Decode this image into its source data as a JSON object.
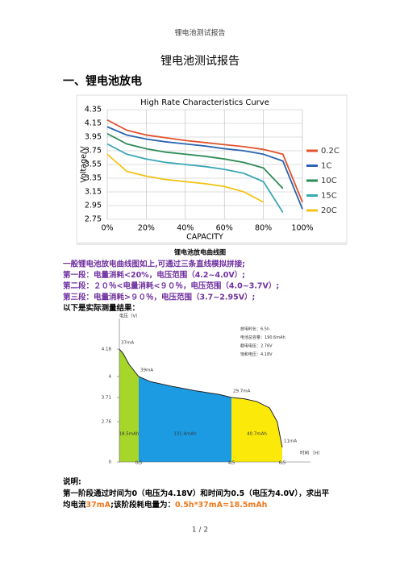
{
  "header": "锂电池测试报告",
  "title": "锂电池测试报告",
  "heading": "一、锂电池放电",
  "chart1": {
    "type": "line",
    "title": "High Rate Characteristics Curve",
    "ylabel": "Voltage/V",
    "xlabel": "CAPACITY",
    "x": [
      0,
      10,
      20,
      30,
      40,
      50,
      60,
      70,
      80,
      90,
      100
    ],
    "xlim": [
      0,
      100
    ],
    "xticks": [
      {
        "value": 0,
        "label": "0%"
      },
      {
        "value": 20,
        "label": "20%"
      },
      {
        "value": 40,
        "label": "40%"
      },
      {
        "value": 60,
        "label": "60%"
      },
      {
        "value": 80,
        "label": "80%"
      },
      {
        "value": 100,
        "label": "100%"
      }
    ],
    "ylim": [
      2.75,
      4.35
    ],
    "yticks": [
      4.35,
      4.15,
      3.95,
      3.75,
      3.55,
      3.35,
      3.15,
      2.95,
      2.75
    ],
    "grid": true,
    "series": [
      {
        "name": "0.2C",
        "color": "#e0532c",
        "values": [
          4.2,
          4.05,
          3.98,
          3.94,
          3.9,
          3.87,
          3.84,
          3.81,
          3.77,
          3.7,
          3.0
        ]
      },
      {
        "name": "1C",
        "color": "#2b64b0",
        "values": [
          4.1,
          3.98,
          3.92,
          3.88,
          3.85,
          3.82,
          3.78,
          3.75,
          3.7,
          3.6,
          2.9
        ]
      },
      {
        "name": "10C",
        "color": "#2e8b57",
        "values": [
          4.0,
          3.85,
          3.78,
          3.73,
          3.7,
          3.67,
          3.63,
          3.58,
          3.5,
          3.2,
          null
        ]
      },
      {
        "name": "15C",
        "color": "#3aa7b5",
        "values": [
          3.85,
          3.7,
          3.63,
          3.58,
          3.55,
          3.52,
          3.48,
          3.42,
          3.3,
          2.85,
          null
        ]
      },
      {
        "name": "20C",
        "color": "#f2c318",
        "values": [
          3.7,
          3.45,
          3.38,
          3.33,
          3.3,
          3.27,
          3.23,
          3.15,
          3.0,
          null,
          null
        ]
      }
    ]
  },
  "caption": "锂电池放电曲线图",
  "intro": [
    {
      "text": "一般锂电池放电曲线图如上,可通过三条直线模拟拼接;",
      "color": "#7030a0"
    },
    {
      "text": "第一段：电量消耗<20%，电压范围（4.2~4.0V）;",
      "color": "#7030a0"
    },
    {
      "text": "第二段：２０％<电量消耗<９０％，电压范围（4.0~3.7V）;",
      "color": "#7030a0"
    },
    {
      "text": "第三段：电量消耗>９０％，电压范围（3.7~2.95V）;",
      "color": "#7030a0"
    },
    {
      "text": "以下是实际测量结果：",
      "color": "#000000"
    }
  ],
  "chart2": {
    "type": "area",
    "ylabel": "电压（V）",
    "xlabel": "时间 （H）",
    "x": [
      0,
      0.1,
      0.25,
      0.5,
      1,
      2,
      3,
      4,
      4.5,
      5,
      5.5,
      6,
      6.3,
      6.5
    ],
    "values": [
      4.18,
      4.15,
      4.08,
      4.0,
      3.93,
      3.86,
      3.8,
      3.75,
      3.71,
      3.66,
      3.55,
      3.3,
      2.76,
      1.0
    ],
    "yticks": [
      4.18,
      4.0,
      3.71,
      2.76,
      0
    ],
    "xticks": [
      0.5,
      4.5,
      6.5
    ],
    "currents": {
      "values": [
        37,
        39,
        29.7,
        11
      ],
      "value_labels": [
        "37mA",
        "39mA",
        "29.7mA",
        "11mA"
      ]
    },
    "segments": {
      "values": [
        18.5,
        131.4,
        40.7
      ],
      "value_labels": [
        "18.5mAh",
        "131.4mAh",
        "40.7mAh"
      ],
      "colors": [
        "#a6d62a",
        "#1c9be3",
        "#fbe90a"
      ]
    },
    "info": [
      "放电时长：6.5h",
      "电池总容量：190.6mAh",
      "截电电压：2.76V",
      "饱和电压：4.18V"
    ]
  },
  "explanation": {
    "label": "说明:",
    "lines": [
      [
        {
          "text": "第一阶段通过时间为0（电压为4.18V）和时间为0.5（电压为4.0V），求出平",
          "color": "#000000"
        }
      ],
      [
        {
          "text": "均电流",
          "color": "#000000"
        },
        {
          "text": "37mA",
          "color": "#f0781e"
        },
        {
          "text": ";该阶段耗电量为：",
          "color": "#000000"
        },
        {
          "text": "0.5h*37mA=18.5mAh",
          "color": "#f0781e"
        }
      ]
    ]
  },
  "footer": "1 / 2"
}
